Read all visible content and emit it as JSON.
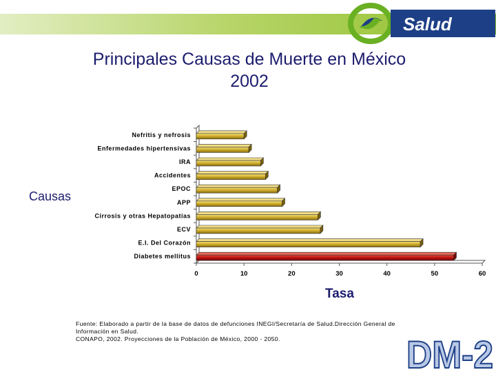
{
  "header": {
    "logo_text": "Salud",
    "colors": {
      "band": "#8fbf2a",
      "logo_blue": "#1d3f86",
      "logo_green": "#6ab023"
    }
  },
  "title": {
    "line1": "Principales Causas de Muerte en México",
    "line2": "2002"
  },
  "chart_data": {
    "type": "bar",
    "orientation": "horizontal",
    "categories": [
      "Nefritis y nefrosis",
      "Enfermedades hipertensivas",
      "IRA",
      "Accidentes",
      "EPOC",
      "APP",
      "Cirrosis y otras Hepatopatías",
      "ECV",
      "E.I. Del Corazón",
      "Diabetes mellitus"
    ],
    "values": [
      10,
      11,
      13.5,
      14.5,
      17,
      18,
      25.5,
      26,
      47,
      54
    ],
    "xlabel": "Tasa",
    "ylabel": "Causas",
    "xlim": [
      0,
      60
    ],
    "xticks": [
      0,
      10,
      20,
      30,
      40,
      50,
      60
    ],
    "grid": false,
    "legend": "none",
    "style": "3d",
    "colors": {
      "bar": "#c9a826",
      "highlight": "#b01010"
    },
    "highlight_category": "Diabetes mellitus"
  },
  "source": {
    "line1": "Fuente: Elaborado a partir de la base de datos de defunciones INEGI/Secretaría de Salud.Dirección General de",
    "line2": "Información en Salud.",
    "line3": "CONAPO, 2002. Proyecciones de la Población de México, 2000 - 2050."
  },
  "watermark": {
    "text": "DM-2"
  }
}
